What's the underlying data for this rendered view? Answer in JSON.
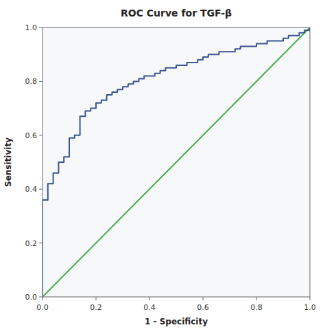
{
  "chart_data": {
    "type": "line",
    "title": "ROC Curve for TGF-β",
    "xlabel": "1 - Specificity",
    "ylabel": "Sensitivity",
    "xlim": [
      0.0,
      1.0
    ],
    "ylim": [
      0.0,
      1.0
    ],
    "xticks": [
      {
        "value": 0.0,
        "label": "0.0"
      },
      0.2,
      0.4,
      0.6,
      0.8,
      {
        "value": 1.0,
        "label": "1.0"
      }
    ],
    "yticks": [
      {
        "value": 0.0,
        "label": "0.0"
      },
      0.2,
      0.4,
      0.6,
      0.8,
      {
        "value": 1.0,
        "label": "1.0"
      }
    ],
    "grid": false,
    "series": [
      {
        "color": "#4aad52",
        "x": [
          0,
          1
        ],
        "values": [
          0,
          1
        ]
      },
      {
        "color": "#3a5590",
        "x": [
          0.0,
          0.0,
          0.0,
          0.02,
          0.02,
          0.04,
          0.04,
          0.06,
          0.06,
          0.08,
          0.08,
          0.1,
          0.1,
          0.12,
          0.12,
          0.14,
          0.14,
          0.16,
          0.16,
          0.18,
          0.18,
          0.2,
          0.2,
          0.22,
          0.22,
          0.24,
          0.24,
          0.26,
          0.26,
          0.28,
          0.28,
          0.3,
          0.3,
          0.32,
          0.32,
          0.34,
          0.34,
          0.36,
          0.36,
          0.38,
          0.38,
          0.4,
          0.4,
          0.42,
          0.42,
          0.44,
          0.44,
          0.46,
          0.46,
          0.48,
          0.48,
          0.5,
          0.5,
          0.52,
          0.52,
          0.54,
          0.54,
          0.56,
          0.56,
          0.58,
          0.58,
          0.6,
          0.6,
          0.62,
          0.62,
          0.64,
          0.64,
          0.66,
          0.66,
          0.68,
          0.68,
          0.7,
          0.7,
          0.72,
          0.72,
          0.74,
          0.74,
          0.76,
          0.76,
          0.78,
          0.78,
          0.8,
          0.8,
          0.82,
          0.82,
          0.84,
          0.84,
          0.86,
          0.86,
          0.88,
          0.88,
          0.9,
          0.9,
          0.92,
          0.92,
          0.94,
          0.94,
          0.96,
          0.96,
          0.98,
          0.98,
          1.0,
          1.0
        ],
        "values": [
          0.0,
          0.29,
          0.36,
          0.36,
          0.42,
          0.42,
          0.46,
          0.46,
          0.5,
          0.5,
          0.52,
          0.52,
          0.59,
          0.59,
          0.6,
          0.6,
          0.67,
          0.67,
          0.69,
          0.69,
          0.7,
          0.7,
          0.72,
          0.72,
          0.73,
          0.73,
          0.75,
          0.75,
          0.76,
          0.76,
          0.77,
          0.77,
          0.78,
          0.78,
          0.79,
          0.79,
          0.8,
          0.8,
          0.81,
          0.81,
          0.82,
          0.82,
          0.82,
          0.82,
          0.83,
          0.83,
          0.84,
          0.84,
          0.85,
          0.85,
          0.85,
          0.85,
          0.86,
          0.86,
          0.86,
          0.86,
          0.87,
          0.87,
          0.87,
          0.87,
          0.88,
          0.88,
          0.89,
          0.89,
          0.9,
          0.9,
          0.9,
          0.9,
          0.91,
          0.91,
          0.91,
          0.91,
          0.91,
          0.91,
          0.92,
          0.92,
          0.93,
          0.93,
          0.93,
          0.93,
          0.93,
          0.93,
          0.94,
          0.94,
          0.94,
          0.94,
          0.95,
          0.95,
          0.95,
          0.95,
          0.95,
          0.95,
          0.96,
          0.96,
          0.97,
          0.97,
          0.97,
          0.97,
          0.98,
          0.98,
          0.99,
          0.99,
          1.0
        ]
      }
    ]
  }
}
